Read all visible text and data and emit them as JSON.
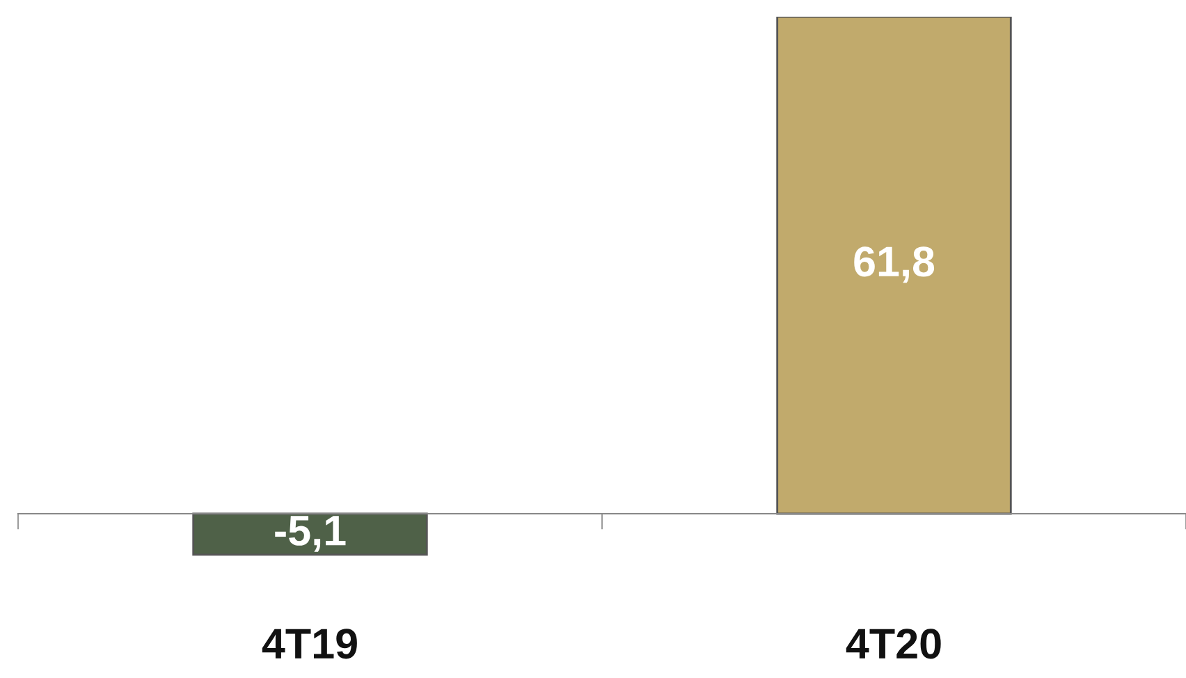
{
  "chart_data": {
    "type": "bar",
    "categories": [
      "4T19",
      "4T20"
    ],
    "values": [
      -5.1,
      61.8
    ],
    "colors": [
      "#4f6148",
      "#c1aa6c"
    ],
    "value_labels": [
      "-5,1",
      "61,8"
    ],
    "grid": false,
    "legend": false
  }
}
